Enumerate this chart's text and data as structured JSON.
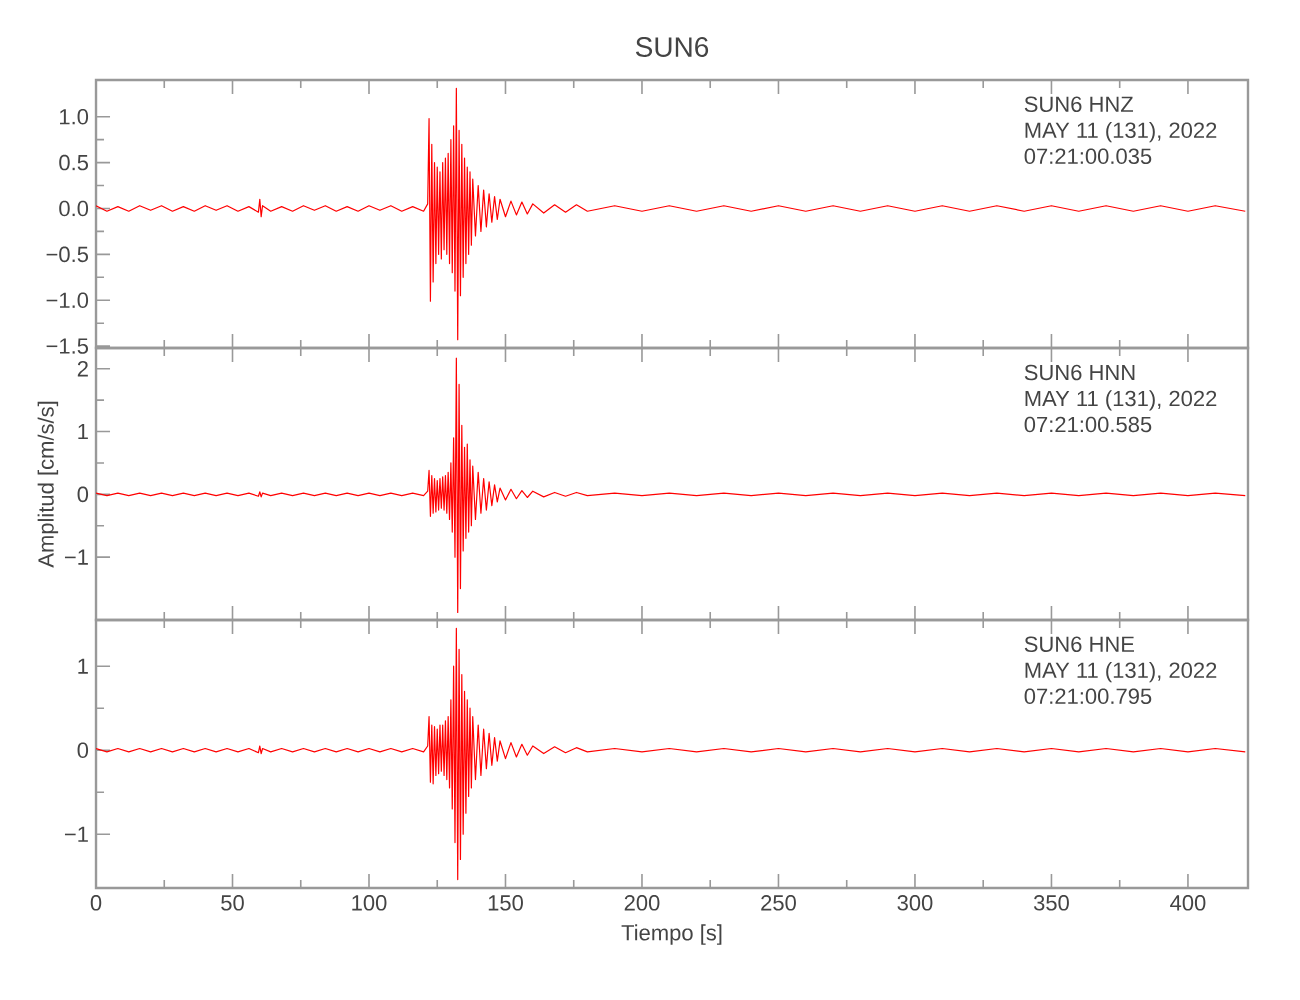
{
  "chart_data": [
    {
      "type": "line",
      "title": "SUN6",
      "tick_labels": "y",
      "annotations": [
        "SUN6   HNZ",
        "MAY 11 (131), 2022",
        "07:21:00.035"
      ],
      "x": [
        0,
        4,
        8,
        12,
        16,
        20,
        24,
        28,
        32,
        36,
        40,
        44,
        48,
        52,
        56,
        59.5,
        60,
        60.5,
        61,
        64,
        68,
        72,
        76,
        80,
        84,
        88,
        92,
        96,
        100,
        104,
        108,
        112,
        116,
        120,
        121.5,
        122,
        122.5,
        123,
        123.5,
        124,
        124.5,
        125,
        125.5,
        126,
        126.5,
        127,
        127.5,
        128,
        128.5,
        129,
        129.5,
        130,
        130.5,
        131,
        131.5,
        132,
        132.5,
        133,
        133.5,
        134,
        134.5,
        135,
        135.5,
        136,
        136.5,
        137,
        137.5,
        138,
        139,
        140,
        141,
        142,
        143,
        144,
        145,
        146,
        147,
        148,
        150,
        152,
        154,
        156,
        158,
        160,
        164,
        168,
        172,
        176,
        180,
        190,
        200,
        210,
        220,
        230,
        240,
        250,
        260,
        270,
        280,
        290,
        300,
        310,
        320,
        330,
        340,
        350,
        360,
        370,
        380,
        390,
        400,
        410,
        421
      ],
      "series": [
        {
          "color": "#ff0000",
          "values": [
            0.03,
            -0.03,
            0.02,
            -0.03,
            0.03,
            -0.02,
            0.03,
            -0.03,
            0.02,
            -0.03,
            0.03,
            -0.02,
            0.03,
            -0.03,
            0.02,
            -0.04,
            0.1,
            -0.09,
            0.03,
            -0.03,
            0.02,
            -0.03,
            0.03,
            -0.02,
            0.03,
            -0.03,
            0.02,
            -0.03,
            0.03,
            -0.02,
            0.03,
            -0.03,
            0.02,
            -0.03,
            0.05,
            0.98,
            -1.01,
            0.7,
            -0.8,
            0.5,
            -0.6,
            0.45,
            -0.5,
            0.4,
            -0.55,
            0.5,
            -0.45,
            0.55,
            -0.5,
            0.6,
            -0.6,
            0.75,
            -0.7,
            0.9,
            -0.9,
            1.31,
            -1.43,
            0.85,
            -0.95,
            0.7,
            -0.75,
            0.55,
            -0.6,
            0.45,
            -0.5,
            0.4,
            -0.4,
            0.32,
            -0.3,
            0.25,
            -0.25,
            0.2,
            -0.2,
            0.16,
            -0.15,
            0.13,
            -0.12,
            0.1,
            -0.09,
            0.08,
            -0.07,
            0.07,
            -0.06,
            0.05,
            -0.05,
            0.04,
            -0.04,
            0.04,
            -0.03,
            0.03,
            -0.03,
            0.03,
            -0.03,
            0.03,
            -0.03,
            0.03,
            -0.03,
            0.03,
            -0.03,
            0.03,
            -0.03,
            0.03,
            -0.03,
            0.03,
            -0.03,
            0.03,
            -0.03,
            0.03,
            -0.03,
            0.03,
            -0.03,
            0.03,
            -0.03
          ]
        }
      ],
      "xlim": [
        0,
        422
      ],
      "xticks": [
        0,
        50,
        100,
        150,
        200,
        250,
        300,
        350,
        400
      ],
      "ylim": [
        -1.52,
        1.4
      ],
      "yticks": [
        {
          "value": -1.5,
          "label": "−1.5"
        },
        {
          "value": -1.0,
          "label": "−1.0"
        },
        {
          "value": -0.5,
          "label": "−0.5"
        },
        {
          "value": 0,
          "label": "0.0"
        },
        {
          "value": 0.5,
          "label": "0.5"
        },
        {
          "value": 1.0,
          "label": "1.0"
        }
      ]
    },
    {
      "type": "line",
      "ylabel": "Amplitud [cm/s/s]",
      "tick_labels": "y",
      "annotations": [
        "SUN6   HNN",
        "MAY 11 (131), 2022",
        "07:21:00.585"
      ],
      "x": [
        0,
        4,
        8,
        12,
        16,
        20,
        24,
        28,
        32,
        36,
        40,
        44,
        48,
        52,
        56,
        59.5,
        60,
        60.5,
        61,
        64,
        68,
        72,
        76,
        80,
        84,
        88,
        92,
        96,
        100,
        104,
        108,
        112,
        116,
        120,
        121.5,
        122,
        122.5,
        123,
        123.5,
        124,
        124.5,
        125,
        125.5,
        126,
        126.5,
        127,
        127.5,
        128,
        128.5,
        129,
        129.5,
        130,
        130.5,
        131,
        131.5,
        132,
        132.5,
        133,
        133.5,
        134,
        134.5,
        135,
        135.5,
        136,
        136.5,
        137,
        137.5,
        138,
        139,
        140,
        141,
        142,
        143,
        144,
        145,
        146,
        147,
        148,
        150,
        152,
        154,
        156,
        158,
        160,
        164,
        168,
        172,
        176,
        180,
        190,
        200,
        210,
        220,
        230,
        240,
        250,
        260,
        270,
        280,
        290,
        300,
        310,
        320,
        330,
        340,
        350,
        360,
        370,
        380,
        390,
        400,
        410,
        421
      ],
      "series": [
        {
          "color": "#ff0000",
          "values": [
            0.02,
            -0.02,
            0.02,
            -0.02,
            0.02,
            -0.02,
            0.02,
            -0.02,
            0.02,
            -0.02,
            0.02,
            -0.02,
            0.02,
            -0.02,
            0.02,
            -0.03,
            0.04,
            -0.04,
            0.02,
            -0.02,
            0.02,
            -0.02,
            0.02,
            -0.02,
            0.02,
            -0.02,
            0.02,
            -0.02,
            0.02,
            -0.02,
            0.02,
            -0.02,
            0.02,
            -0.02,
            0.05,
            0.38,
            -0.35,
            0.3,
            -0.3,
            0.25,
            -0.28,
            0.22,
            -0.25,
            0.25,
            -0.22,
            0.28,
            -0.25,
            0.3,
            -0.3,
            0.35,
            -0.4,
            0.5,
            -0.6,
            0.9,
            -1.0,
            2.17,
            -1.88,
            1.75,
            -1.5,
            1.1,
            -0.9,
            0.75,
            -0.7,
            0.8,
            -0.6,
            0.55,
            -0.5,
            0.45,
            -0.4,
            0.35,
            -0.3,
            0.25,
            -0.25,
            0.2,
            -0.18,
            0.15,
            -0.12,
            0.1,
            -0.09,
            0.08,
            -0.07,
            0.06,
            -0.05,
            0.05,
            -0.04,
            0.03,
            -0.03,
            0.03,
            -0.02,
            0.02,
            -0.02,
            0.02,
            -0.02,
            0.02,
            -0.02,
            0.02,
            -0.02,
            0.02,
            -0.02,
            0.02,
            -0.02,
            0.02,
            -0.02,
            0.02,
            -0.02,
            0.02,
            -0.02,
            0.02,
            -0.02,
            0.02,
            -0.02,
            0.02,
            -0.02
          ]
        }
      ],
      "xlim": [
        0,
        422
      ],
      "xticks": [
        0,
        50,
        100,
        150,
        200,
        250,
        300,
        350,
        400
      ],
      "ylim": [
        -2.0,
        2.33
      ],
      "yticks": [
        {
          "value": -1,
          "label": "−1"
        },
        0,
        1,
        2
      ]
    },
    {
      "type": "line",
      "xlabel": "Tiempo [s]",
      "annotations": [
        "SUN6   HNE",
        "MAY 11 (131), 2022",
        "07:21:00.795"
      ],
      "x": [
        0,
        4,
        8,
        12,
        16,
        20,
        24,
        28,
        32,
        36,
        40,
        44,
        48,
        52,
        56,
        59.5,
        60,
        60.5,
        61,
        64,
        68,
        72,
        76,
        80,
        84,
        88,
        92,
        96,
        100,
        104,
        108,
        112,
        116,
        120,
        121.5,
        122,
        122.5,
        123,
        123.5,
        124,
        124.5,
        125,
        125.5,
        126,
        126.5,
        127,
        127.5,
        128,
        128.5,
        129,
        129.5,
        130,
        130.5,
        131,
        131.5,
        132,
        132.5,
        133,
        133.5,
        134,
        134.5,
        135,
        135.5,
        136,
        136.5,
        137,
        137.5,
        138,
        139,
        140,
        141,
        142,
        143,
        144,
        145,
        146,
        147,
        148,
        150,
        152,
        154,
        156,
        158,
        160,
        164,
        168,
        172,
        176,
        180,
        190,
        200,
        210,
        220,
        230,
        240,
        250,
        260,
        270,
        280,
        290,
        300,
        310,
        320,
        330,
        340,
        350,
        360,
        370,
        380,
        390,
        400,
        410,
        421
      ],
      "series": [
        {
          "color": "#ff0000",
          "values": [
            0.02,
            -0.02,
            0.02,
            -0.02,
            0.02,
            -0.02,
            0.02,
            -0.02,
            0.02,
            -0.02,
            0.02,
            -0.02,
            0.02,
            -0.02,
            0.02,
            -0.03,
            0.05,
            -0.04,
            0.02,
            -0.02,
            0.02,
            -0.02,
            0.02,
            -0.02,
            0.02,
            -0.02,
            0.02,
            -0.02,
            0.02,
            -0.02,
            0.02,
            -0.02,
            0.02,
            -0.02,
            0.05,
            0.4,
            -0.38,
            0.3,
            -0.4,
            0.28,
            -0.3,
            0.25,
            -0.28,
            0.3,
            -0.25,
            0.3,
            -0.3,
            0.35,
            -0.35,
            0.4,
            -0.45,
            0.6,
            -0.7,
            1.0,
            -1.1,
            1.45,
            -1.54,
            1.2,
            -1.3,
            0.9,
            -1.0,
            0.7,
            -0.75,
            0.6,
            -0.55,
            0.5,
            -0.45,
            0.4,
            -0.35,
            0.3,
            -0.3,
            0.25,
            -0.22,
            0.2,
            -0.18,
            0.15,
            -0.13,
            0.11,
            -0.1,
            0.09,
            -0.08,
            0.07,
            -0.06,
            0.05,
            -0.04,
            0.04,
            -0.03,
            0.03,
            -0.02,
            0.02,
            -0.02,
            0.02,
            -0.02,
            0.02,
            -0.02,
            0.02,
            -0.02,
            0.02,
            -0.02,
            0.02,
            -0.02,
            0.02,
            -0.02,
            0.02,
            -0.02,
            0.02,
            -0.02,
            0.02,
            -0.02,
            0.02,
            -0.02,
            0.02,
            -0.02
          ]
        }
      ],
      "xlim": [
        0,
        422
      ],
      "xticks": [
        0,
        50,
        100,
        150,
        200,
        250,
        300,
        350,
        400
      ],
      "ylim": [
        -1.64,
        1.55
      ],
      "yticks": [
        {
          "value": -1,
          "label": "−1"
        },
        0,
        1
      ]
    }
  ]
}
